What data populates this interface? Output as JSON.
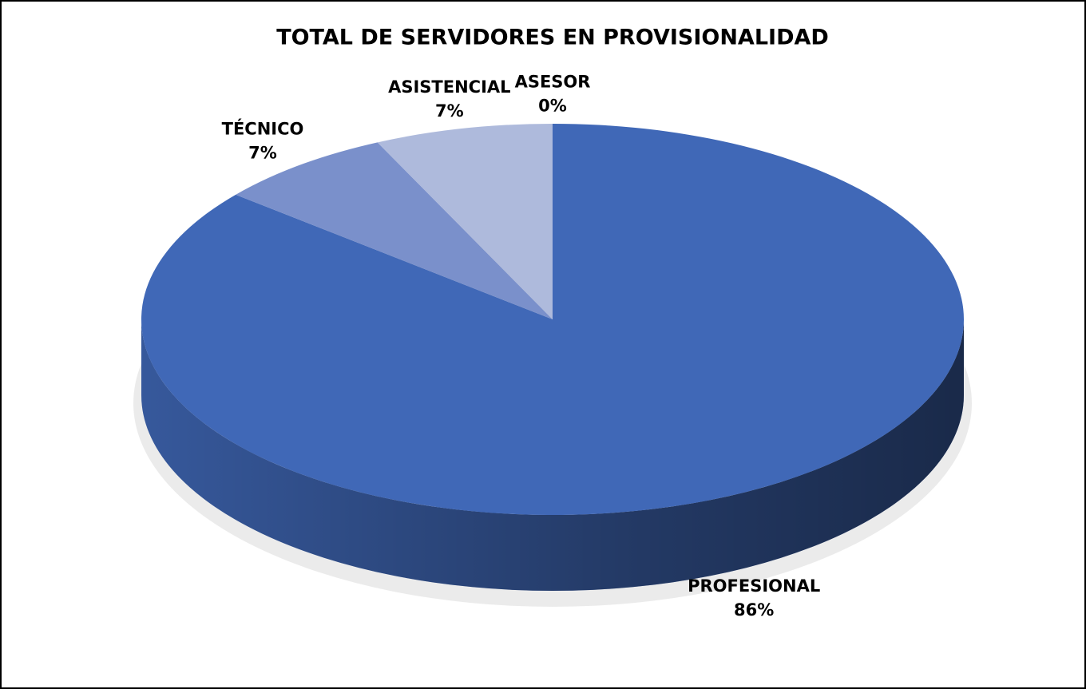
{
  "chart_data": {
    "type": "pie",
    "title": "TOTAL DE SERVIDORES EN PROVISIONALIDAD",
    "categories": [
      "PROFESIONAL",
      "TÉCNICO",
      "ASISTENCIAL",
      "ASESOR"
    ],
    "values": [
      86,
      7,
      7,
      0
    ],
    "value_labels": [
      "86%",
      "7%",
      "7%",
      "0%"
    ],
    "colors": [
      "#4068b7",
      "#7a90cb",
      "#aebadc",
      "#d6dcee"
    ]
  }
}
